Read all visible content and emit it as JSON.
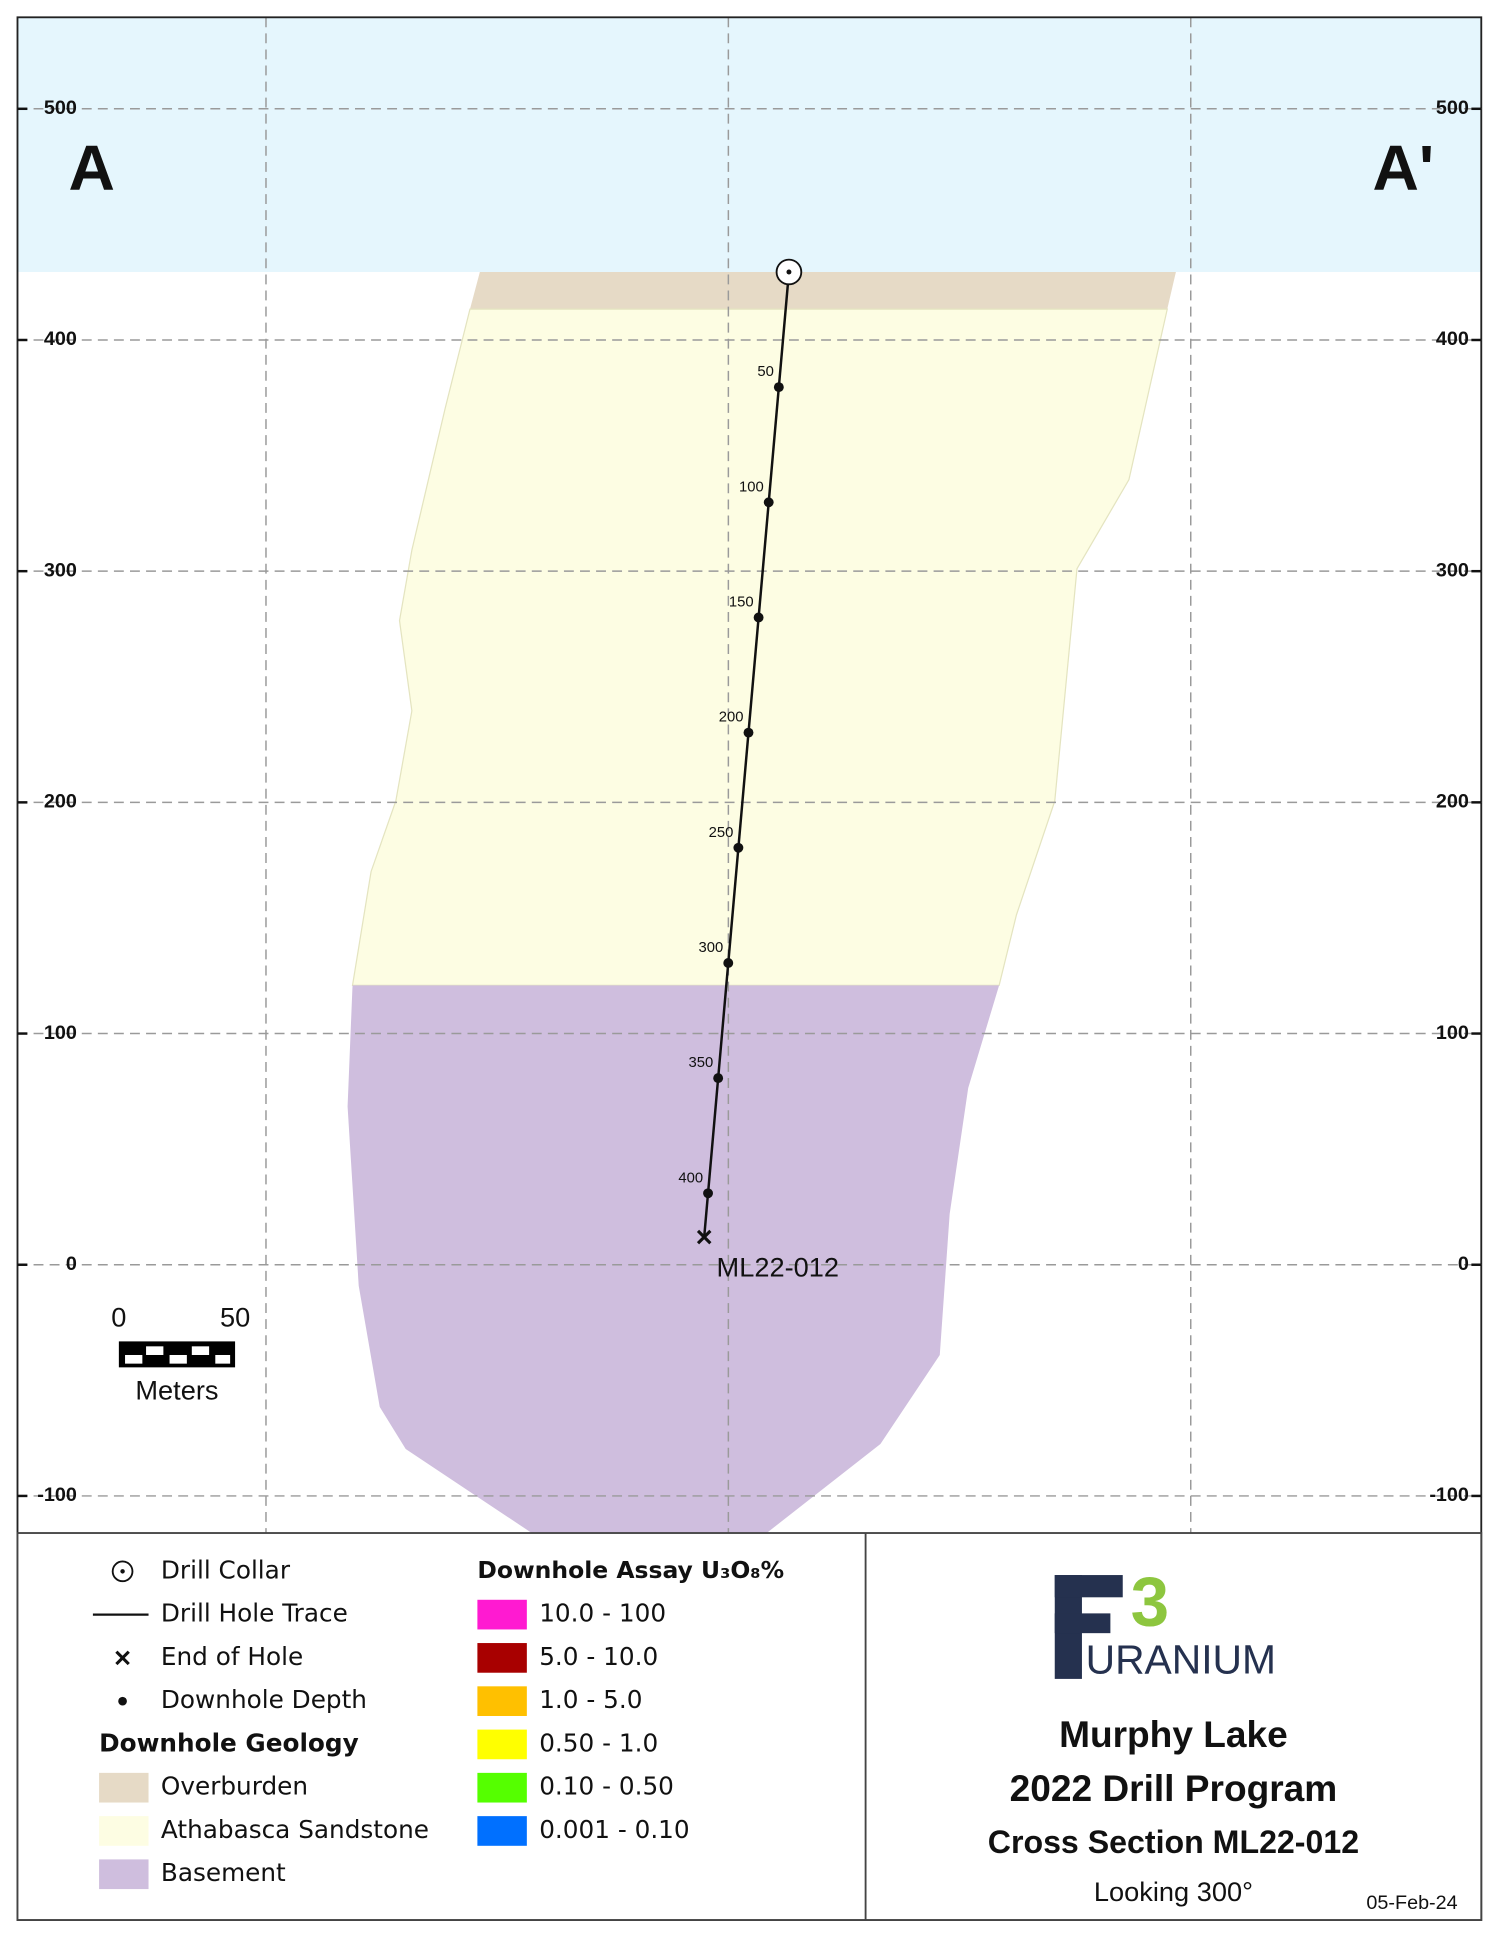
{
  "section_labels": {
    "left": "A",
    "right": "A'"
  },
  "elevation_ticks": [
    500,
    400,
    300,
    200,
    100,
    0,
    -100
  ],
  "drill_hole": {
    "name": "ML22-012",
    "depth_labels": [
      50,
      100,
      150,
      200,
      250,
      300,
      350,
      400
    ]
  },
  "scale_bar": {
    "start": "0",
    "end": "50",
    "unit": "Meters"
  },
  "legend": {
    "symbols": [
      "Drill Collar",
      "Drill Hole Trace",
      "End of Hole",
      "Downhole Depth"
    ],
    "geology_title": "Downhole Geology",
    "geology": [
      {
        "label": "Overburden",
        "color": "#e6dac6"
      },
      {
        "label": "Athabasca Sandstone",
        "color": "#fdfde3"
      },
      {
        "label": "Basement",
        "color": "#cfbede"
      }
    ],
    "assay_title": "Downhole Assay U₃O₈%",
    "assay": [
      {
        "label": "10.0 - 100",
        "color": "#ff1ad1"
      },
      {
        "label": "5.0 - 10.0",
        "color": "#a80000"
      },
      {
        "label": "1.0 - 5.0",
        "color": "#ffc000"
      },
      {
        "label": "0.50 - 1.0",
        "color": "#ffff00"
      },
      {
        "label": "0.10 - 0.50",
        "color": "#55ff00"
      },
      {
        "label": "0.001 - 0.10",
        "color": "#0070ff"
      }
    ]
  },
  "logo": {
    "letter": "F",
    "digit": "3",
    "word": "URANIUM"
  },
  "title_block": {
    "project": "Murphy Lake",
    "program": "2022 Drill Program",
    "section": "Cross Section ML22-012",
    "view": "Looking 300°",
    "date": "05-Feb-24"
  }
}
